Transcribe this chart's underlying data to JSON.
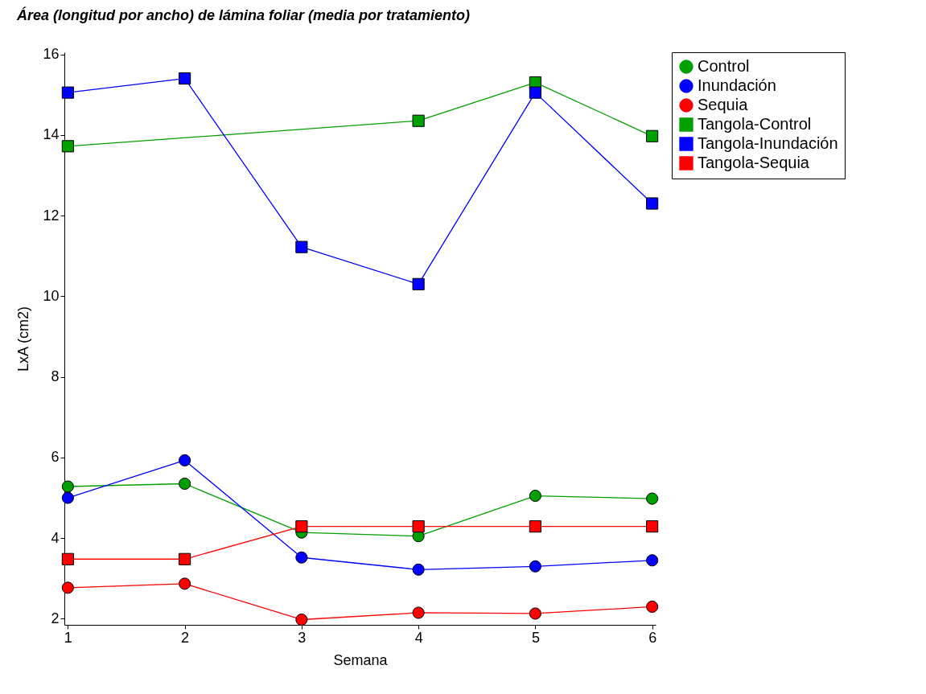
{
  "chart_data": {
    "type": "line",
    "title": "Área (longitud por ancho) de lámina foliar (media por tratamiento)",
    "xlabel": "Semana",
    "ylabel": "LxA (cm2)",
    "x": [
      1,
      2,
      3,
      4,
      5,
      6
    ],
    "xlim": [
      0.97,
      6.03
    ],
    "xticks": [
      1,
      2,
      3,
      4,
      5,
      6
    ],
    "ylim": [
      1.85,
      16.05
    ],
    "yticks": [
      2,
      4,
      6,
      8,
      10,
      12,
      14,
      16
    ],
    "grid": false,
    "legend": "top right",
    "series": [
      {
        "name": "Control",
        "color": "#00a000",
        "marker": "circle",
        "values": [
          5.28,
          5.35,
          4.14,
          4.05,
          5.05,
          4.98
        ]
      },
      {
        "name": "Inundación",
        "color": "#0000ff",
        "marker": "circle",
        "values": [
          5.0,
          5.93,
          3.52,
          3.22,
          3.3,
          3.45
        ]
      },
      {
        "name": "Sequia",
        "color": "#ff0000",
        "marker": "circle",
        "values": [
          2.77,
          2.87,
          1.98,
          2.15,
          2.13,
          2.3
        ]
      },
      {
        "name": "Tangola-Control",
        "color": "#00a000",
        "marker": "square",
        "values": [
          13.72,
          null,
          null,
          14.35,
          15.3,
          13.97
        ]
      },
      {
        "name": "Tangola-Inundación",
        "color": "#0000ff",
        "marker": "square",
        "values": [
          15.05,
          15.4,
          11.22,
          10.3,
          15.05,
          12.3
        ]
      },
      {
        "name": "Tangola-Sequia",
        "color": "#ff0000",
        "marker": "square",
        "values": [
          3.48,
          3.48,
          4.29,
          4.29,
          4.29,
          4.29
        ]
      }
    ]
  }
}
